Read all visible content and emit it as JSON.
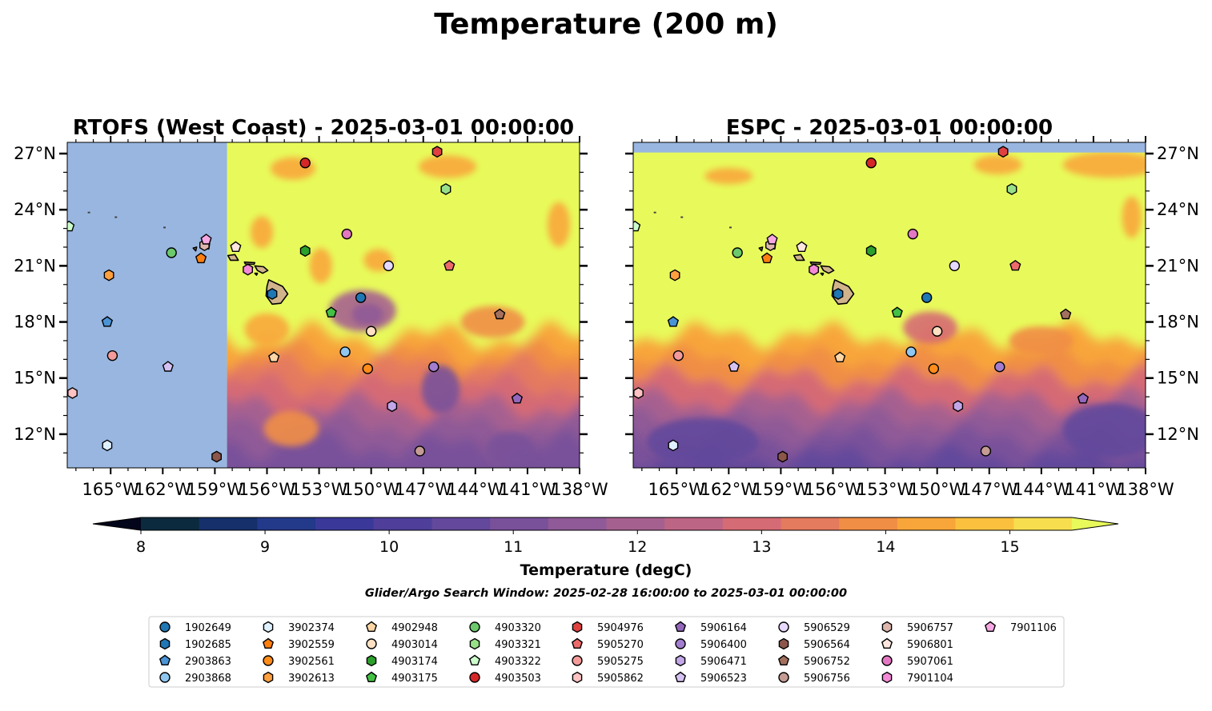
{
  "figure": {
    "title": "Temperature (200 m)",
    "search_window": "Glider/Argo Search Window: 2025-02-28 16:00:00 to 2025-03-01 00:00:00"
  },
  "colors": {
    "land": "#d2b48c",
    "no_data": "#98b6e0",
    "background": "#ffffff"
  },
  "chart_data": [
    {
      "type": "heatmap",
      "title": "RTOFS (West Coast) - 2025-03-01 00:00:00",
      "xlim": [
        -167.5,
        -138
      ],
      "ylim": [
        10.2,
        27.6
      ],
      "x_ticks": [
        -165,
        -162,
        -159,
        -156,
        -153,
        -150,
        -147,
        -144,
        -141,
        -138
      ],
      "x_tick_labels": [
        "165°W",
        "162°W",
        "159°W",
        "156°W",
        "153°W",
        "150°W",
        "147°W",
        "144°W",
        "141°W",
        "138°W"
      ],
      "y_ticks": [
        12,
        15,
        18,
        21,
        24,
        27
      ],
      "y_tick_labels": [
        "12°N",
        "15°N",
        "18°N",
        "21°N",
        "24°N",
        "27°N"
      ],
      "y_tick_side": "left",
      "data_coverage": {
        "lon_min": -158.3,
        "lon_max": -138,
        "lat_min": 10.2,
        "lat_max": 27.6
      },
      "field_summary": "Mostly above 15 degC north of about 18°N; 11-14 degC south of about 17°N, with a cool patch near 18.5°N 150.5°W"
    },
    {
      "type": "heatmap",
      "title": "ESPC - 2025-03-01 00:00:00",
      "xlim": [
        -167.5,
        -138
      ],
      "ylim": [
        10.2,
        27.6
      ],
      "x_ticks": [
        -165,
        -162,
        -159,
        -156,
        -153,
        -150,
        -147,
        -144,
        -141,
        -138
      ],
      "x_tick_labels": [
        "165°W",
        "162°W",
        "159°W",
        "156°W",
        "153°W",
        "150°W",
        "147°W",
        "144°W",
        "141°W",
        "138°W"
      ],
      "y_ticks": [
        12,
        15,
        18,
        21,
        24,
        27
      ],
      "y_tick_labels": [
        "12°N",
        "15°N",
        "18°N",
        "21°N",
        "24°N",
        "27°N"
      ],
      "y_tick_side": "right",
      "data_coverage": {
        "lon_min": -167.5,
        "lon_max": -138,
        "lat_min": 10.2,
        "lat_max": 27.1
      },
      "field_summary": "Above 15 degC north of about 17°N; 10-13 degC in the south, cooling toward the southwest"
    }
  ],
  "colorbar": {
    "label": "Temperature (degC)",
    "min": 8,
    "max": 15.5,
    "step": 0.5,
    "extend": "both",
    "ticks": [
      8,
      9,
      10,
      11,
      12,
      13,
      14,
      15
    ],
    "tick_labels": [
      "8",
      "9",
      "10",
      "11",
      "12",
      "13",
      "14",
      "15"
    ],
    "under_color": "#03051a",
    "over_color": "#e8fa5b",
    "colors": [
      "#0b2a3e",
      "#15306a",
      "#23398a",
      "#3a3999",
      "#4f3f9a",
      "#63489b",
      "#79519a",
      "#8f5a97",
      "#a66090",
      "#bd6585",
      "#d56b74",
      "#e47a5e",
      "#f08e45",
      "#f8a63a",
      "#fbc13e",
      "#f7de4f"
    ]
  },
  "legend": {
    "placement": "lower-center",
    "columns": 9,
    "items": [
      {
        "id": "1902649",
        "marker": "circle",
        "color": "#1f77b4",
        "lon": -150.6,
        "lat": 19.3
      },
      {
        "id": "1902685",
        "marker": "hexagon",
        "color": "#1f77b4",
        "lon": -155.7,
        "lat": 19.5
      },
      {
        "id": "2903863",
        "marker": "pentagon",
        "color": "#4a94d6",
        "lon": -165.2,
        "lat": 18.0
      },
      {
        "id": "2903868",
        "marker": "circle",
        "color": "#8fc7f0",
        "lon": -151.5,
        "lat": 16.4
      },
      {
        "id": "3902374",
        "marker": "hexagon",
        "color": "#dff1ff",
        "lon": -165.2,
        "lat": 11.4
      },
      {
        "id": "3902559",
        "marker": "pentagon",
        "color": "#ff7f0e",
        "lon": -159.8,
        "lat": 21.4
      },
      {
        "id": "3902561",
        "marker": "circle",
        "color": "#ff8c1a",
        "lon": -150.2,
        "lat": 15.5
      },
      {
        "id": "3902613",
        "marker": "hexagon",
        "color": "#ffa040",
        "lon": -165.1,
        "lat": 20.5
      },
      {
        "id": "4902948",
        "marker": "pentagon",
        "color": "#ffd6a6",
        "lon": -155.6,
        "lat": 16.1
      },
      {
        "id": "4903014",
        "marker": "circle",
        "color": "#ffe0c2",
        "lon": -150.0,
        "lat": 17.5
      },
      {
        "id": "4903174",
        "marker": "hexagon",
        "color": "#2ca02c",
        "lon": -153.8,
        "lat": 21.8
      },
      {
        "id": "4903175",
        "marker": "pentagon",
        "color": "#44c044",
        "lon": -152.3,
        "lat": 18.5
      },
      {
        "id": "4903320",
        "marker": "circle",
        "color": "#6cc96c",
        "lon": -161.5,
        "lat": 21.7
      },
      {
        "id": "4903321",
        "marker": "hexagon",
        "color": "#98df8a",
        "lon": -145.7,
        "lat": 25.1
      },
      {
        "id": "4903322",
        "marker": "pentagon",
        "color": "#ccffcc",
        "lon": -167.4,
        "lat": 23.1
      },
      {
        "id": "4903503",
        "marker": "circle",
        "color": "#d62728",
        "lon": -153.8,
        "lat": 26.5
      },
      {
        "id": "5904976",
        "marker": "hexagon",
        "color": "#e04040",
        "lon": -146.2,
        "lat": 27.1
      },
      {
        "id": "5905270",
        "marker": "pentagon",
        "color": "#ec6a6a",
        "lon": -145.5,
        "lat": 21.0
      },
      {
        "id": "5905275",
        "marker": "circle",
        "color": "#f59a9a",
        "lon": -164.9,
        "lat": 16.2
      },
      {
        "id": "5905862",
        "marker": "hexagon",
        "color": "#ffc2c2",
        "lon": -167.2,
        "lat": 14.2
      },
      {
        "id": "5906164",
        "marker": "pentagon",
        "color": "#9467bd",
        "lon": -141.6,
        "lat": 13.9
      },
      {
        "id": "5906400",
        "marker": "circle",
        "color": "#a37dd0",
        "lon": -146.4,
        "lat": 15.6
      },
      {
        "id": "5906471",
        "marker": "hexagon",
        "color": "#c2a6e8",
        "lon": -148.8,
        "lat": 13.5
      },
      {
        "id": "5906523",
        "marker": "pentagon",
        "color": "#d6c2f2",
        "lon": -161.7,
        "lat": 15.6
      },
      {
        "id": "5906529",
        "marker": "circle",
        "color": "#e6d8ff",
        "lon": -149.0,
        "lat": 21.0
      },
      {
        "id": "5906564",
        "marker": "hexagon",
        "color": "#8c564b",
        "lon": -158.9,
        "lat": 10.8
      },
      {
        "id": "5906752",
        "marker": "pentagon",
        "color": "#a4705e",
        "lon": -142.6,
        "lat": 18.4
      },
      {
        "id": "5906756",
        "marker": "circle",
        "color": "#c49c94",
        "lon": -147.2,
        "lat": 11.1
      },
      {
        "id": "5906757",
        "marker": "hexagon",
        "color": "#ddb6ac",
        "lon": -159.6,
        "lat": 22.1
      },
      {
        "id": "5906801",
        "marker": "pentagon",
        "color": "#ffe6de",
        "lon": -157.8,
        "lat": 22.0
      },
      {
        "id": "5907061",
        "marker": "circle",
        "color": "#e377c2",
        "lon": -151.4,
        "lat": 22.7
      },
      {
        "id": "7901104",
        "marker": "hexagon",
        "color": "#f48ad6",
        "lon": -157.1,
        "lat": 20.8
      },
      {
        "id": "7901106",
        "marker": "pentagon",
        "color": "#f7a8e3",
        "lon": -159.5,
        "lat": 22.4
      }
    ]
  }
}
